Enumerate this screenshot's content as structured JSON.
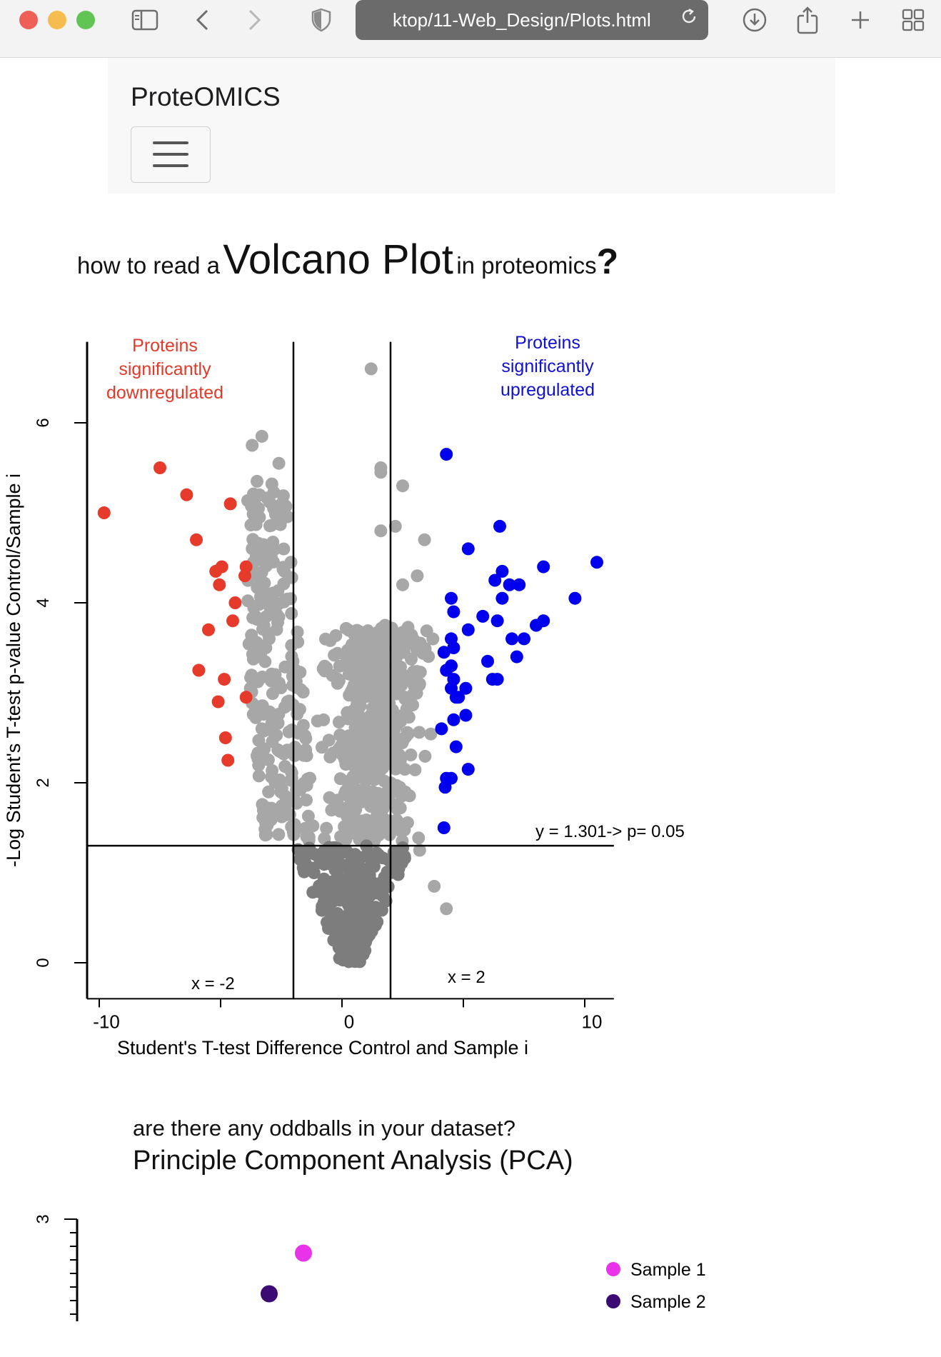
{
  "browser": {
    "url_text": "ktop/11-Web_Design/Plots.html"
  },
  "navbar": {
    "brand": "ProteOMICS"
  },
  "heading": {
    "prefix": "how to read a",
    "main": "Volcano Plot",
    "suffix": "in proteomics",
    "punct": "?"
  },
  "volcano": {
    "ylabel": "-Log Student's T-test p-value Control/Sample i",
    "xlabel": "Student's T-test Difference Control and Sample i",
    "xticks": [
      "-10",
      "0",
      "10"
    ],
    "yticks": [
      "0",
      "2",
      "4",
      "6"
    ],
    "down_label": [
      "Proteins",
      "significantly",
      "downregulated"
    ],
    "up_label": [
      "Proteins",
      "significantly",
      "upregulated"
    ],
    "line_y_label": "y = 1.301-> p= 0.05",
    "line_left_label": "x = -2",
    "line_right_label": "x = 2",
    "colors": {
      "down": "#e63a2a",
      "up": "#0000ee",
      "ns_high": "#a7a7a7",
      "ns_low": "#7d7d7d",
      "down_text": "#e03a2a",
      "up_text": "#1010d0"
    }
  },
  "pca": {
    "heading_line1": "are there any oddballs in your dataset?",
    "heading_line2": "Principle Component Analysis (PCA)",
    "ytick_top": "3",
    "legend": [
      {
        "label": "Sample 1",
        "color": "#e933e9"
      },
      {
        "label": "Sample 2",
        "color": "#3c0a73"
      }
    ]
  },
  "chart_data": [
    {
      "type": "scatter",
      "title": "",
      "xlabel": "Student's T-test Difference Control and Sample i",
      "ylabel": "-Log Student's T-test p-value Control/Sample i",
      "xlim": [
        -10.5,
        11.2
      ],
      "ylim": [
        -0.4,
        6.9
      ],
      "threshold_lines": {
        "x": [
          -2,
          2
        ],
        "y": 1.301
      },
      "series": [
        {
          "name": "Proteins significantly downregulated",
          "color": "#e63a2a",
          "points": [
            [
              -9.8,
              5.0
            ],
            [
              -7.5,
              5.5
            ],
            [
              -6.4,
              5.2
            ],
            [
              -6.0,
              4.7
            ],
            [
              -5.2,
              4.35
            ],
            [
              -4.95,
              4.4
            ],
            [
              -5.05,
              4.2
            ],
            [
              -4.6,
              5.1
            ],
            [
              -4.4,
              4.0
            ],
            [
              -5.5,
              3.7
            ],
            [
              -4.5,
              3.8
            ],
            [
              -5.9,
              3.25
            ],
            [
              -4.85,
              3.15
            ],
            [
              -5.1,
              2.9
            ],
            [
              -4.8,
              2.5
            ],
            [
              -4.7,
              2.25
            ],
            [
              -3.95,
              2.95
            ],
            [
              -4.0,
              4.3
            ],
            [
              -3.95,
              4.4
            ]
          ]
        },
        {
          "name": "Proteins significantly upregulated",
          "color": "#0000ee",
          "points": [
            [
              4.3,
              5.65
            ],
            [
              10.5,
              4.45
            ],
            [
              6.5,
              4.85
            ],
            [
              5.2,
              4.6
            ],
            [
              6.3,
              4.25
            ],
            [
              6.6,
              4.35
            ],
            [
              6.9,
              4.2
            ],
            [
              7.3,
              4.2
            ],
            [
              8.3,
              4.4
            ],
            [
              9.6,
              4.05
            ],
            [
              4.5,
              4.05
            ],
            [
              4.6,
              3.9
            ],
            [
              5.8,
              3.85
            ],
            [
              6.4,
              3.8
            ],
            [
              7.0,
              3.6
            ],
            [
              7.5,
              3.6
            ],
            [
              8.0,
              3.75
            ],
            [
              8.3,
              3.8
            ],
            [
              6.6,
              4.05
            ],
            [
              5.2,
              3.7
            ],
            [
              4.5,
              3.6
            ],
            [
              4.6,
              3.5
            ],
            [
              4.2,
              3.45
            ],
            [
              6.0,
              3.35
            ],
            [
              7.2,
              3.4
            ],
            [
              4.5,
              3.3
            ],
            [
              4.3,
              3.25
            ],
            [
              4.6,
              3.15
            ],
            [
              4.5,
              3.05
            ],
            [
              4.7,
              2.95
            ],
            [
              5.1,
              3.05
            ],
            [
              4.8,
              2.95
            ],
            [
              6.2,
              3.15
            ],
            [
              6.4,
              3.15
            ],
            [
              5.1,
              2.75
            ],
            [
              4.6,
              2.7
            ],
            [
              4.1,
              2.6
            ],
            [
              4.7,
              2.4
            ],
            [
              5.2,
              2.15
            ],
            [
              4.5,
              2.05
            ],
            [
              4.3,
              2.05
            ],
            [
              4.25,
              1.95
            ],
            [
              4.2,
              1.5
            ]
          ]
        },
        {
          "name": "",
          "color": "#a7a7a7",
          "points": [
            [
              1.2,
              6.6
            ],
            [
              -3.7,
              5.75
            ],
            [
              -3.3,
              5.85
            ],
            [
              -2.6,
              5.55
            ],
            [
              -3.5,
              5.35
            ],
            [
              -3.4,
              5.2
            ],
            [
              1.6,
              5.5
            ],
            [
              2.5,
              5.3
            ],
            [
              1.6,
              5.45
            ],
            [
              1.6,
              4.8
            ],
            [
              2.2,
              4.85
            ],
            [
              3.4,
              4.7
            ],
            [
              -3.4,
              4.95
            ],
            [
              3.1,
              4.3
            ],
            [
              2.5,
              4.2
            ],
            [
              -3.0,
              3.6
            ],
            [
              3.2,
              3.1
            ],
            [
              -3.3,
              2.6
            ],
            [
              -3.5,
              2.3
            ],
            [
              -2.2,
              1.8
            ],
            [
              -2.0,
              1.45
            ],
            [
              0.5,
              1.7
            ],
            [
              3.2,
              1.25
            ],
            [
              3.8,
              0.85
            ],
            [
              4.3,
              0.6
            ]
          ]
        },
        {
          "name": "",
          "color": "#7d7d7d",
          "points": [
            [
              -1.5,
              1.1
            ],
            [
              -0.9,
              1.2
            ],
            [
              -0.5,
              1.1
            ],
            [
              -0.4,
              0.9
            ],
            [
              -0.3,
              0.7
            ],
            [
              0.3,
              0.8
            ],
            [
              0.6,
              0.6
            ],
            [
              0.8,
              0.9
            ],
            [
              1.1,
              1.05
            ],
            [
              1.5,
              1.2
            ],
            [
              2.0,
              1.0
            ],
            [
              2.5,
              1.15
            ],
            [
              -0.2,
              0.4
            ],
            [
              0.2,
              0.3
            ],
            [
              -0.1,
              0.05
            ],
            [
              0.05,
              0.1
            ]
          ]
        }
      ]
    },
    {
      "type": "scatter",
      "title": "Principle Component Analysis (PCA)",
      "series": [
        {
          "name": "Sample 1",
          "color": "#e933e9",
          "points": [
            [
              -1.5,
              2.75
            ]
          ]
        },
        {
          "name": "Sample 2",
          "color": "#3c0a73",
          "points": [
            [
              -1.9,
              2.45
            ]
          ]
        }
      ]
    }
  ]
}
